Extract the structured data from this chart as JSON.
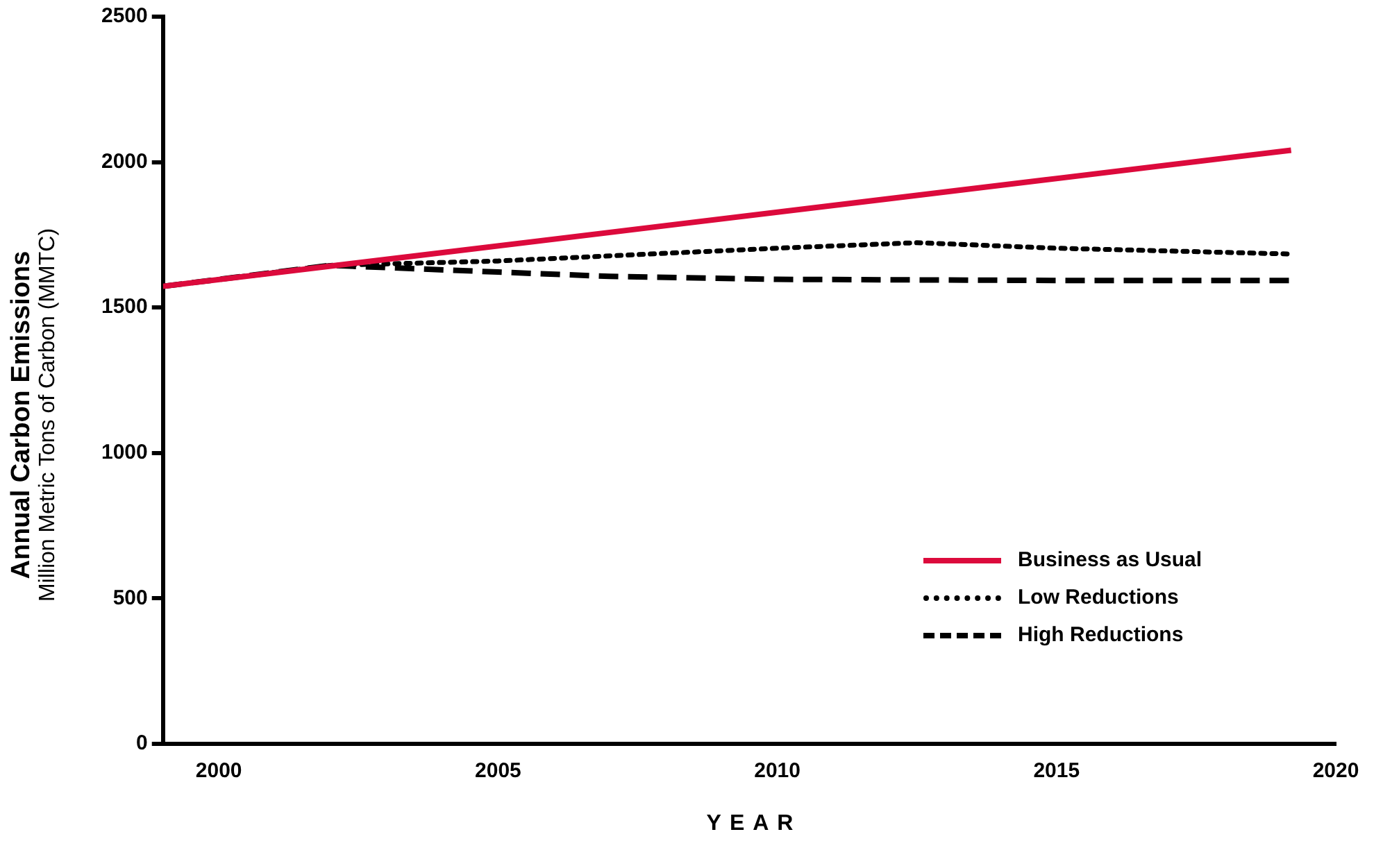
{
  "chart_data": {
    "type": "line",
    "ylabel": "Annual Carbon Emissions",
    "subtitle": "Million Metric Tons of Carbon (MMTC)",
    "xlabel": "YEAR",
    "xlim": [
      1999,
      2020
    ],
    "xticks": [
      2000,
      2005,
      2010,
      2015,
      2020
    ],
    "ylim": [
      0,
      2500
    ],
    "yticks": [
      0,
      500,
      1000,
      1500,
      2000,
      2500
    ],
    "grid": false,
    "legend": "bottom right",
    "marker": "none",
    "series": [
      {
        "name": "Business as Usual",
        "color": "#dc0a3c",
        "line_style": "solid",
        "x": [
          1999,
          2019.2
        ],
        "values": [
          1573,
          2041
        ]
      },
      {
        "name": "Low Reductions",
        "color": "#000000",
        "line_style": "dotted",
        "x": [
          1999,
          2002,
          2005,
          2010,
          2012.5,
          2015,
          2019.2
        ],
        "values": [
          1573,
          1645,
          1660,
          1704,
          1723,
          1704,
          1684
        ]
      },
      {
        "name": "High Reductions",
        "color": "#000000",
        "line_style": "dashed",
        "x": [
          1999,
          2002,
          2005,
          2007,
          2010,
          2015,
          2019.2
        ],
        "values": [
          1573,
          1645,
          1622,
          1607,
          1597,
          1593,
          1593
        ]
      }
    ]
  }
}
